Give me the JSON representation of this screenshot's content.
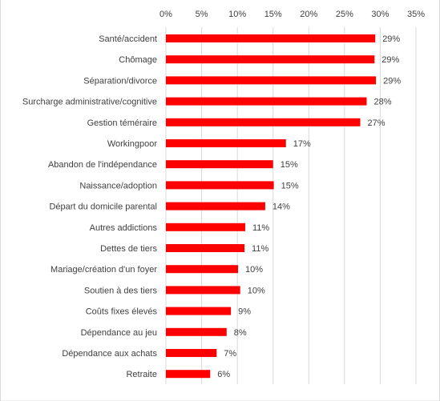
{
  "chart_data": {
    "type": "bar",
    "orientation": "horizontal",
    "categories": [
      "Santé/accident",
      "Chômage",
      "Séparation/divorce",
      "Surcharge administrative/cognitive",
      "Gestion téméraire",
      "Workingpoor",
      "Abandon de l'indépendance",
      "Naissance/adoption",
      "Départ du domicile parental",
      "Autres addictions",
      "Dettes de tiers",
      "Mariage/création d'un foyer",
      "Soutien à des tiers",
      "Coûts fixes élevés",
      "Dépendance au jeu",
      "Dépendance aux achats",
      "Retraite"
    ],
    "values": [
      29.3,
      29.2,
      29.4,
      28.1,
      27.2,
      16.8,
      15.0,
      15.1,
      13.9,
      11.1,
      11.0,
      10.1,
      10.4,
      9.1,
      8.5,
      7.1,
      6.2
    ],
    "data_labels": [
      "29%",
      "29%",
      "29%",
      "28%",
      "27%",
      "17%",
      "15%",
      "15%",
      "14%",
      "11%",
      "11%",
      "10%",
      "10%",
      "9%",
      "8%",
      "7%",
      "6%"
    ],
    "x_ticks": [
      "0%",
      "5%",
      "10%",
      "15%",
      "20%",
      "25%",
      "30%",
      "35%"
    ],
    "xlim": [
      0,
      35
    ],
    "grid": true,
    "legend": "none",
    "bar_color": "#ff0000",
    "grid_color": "#d9d9d9",
    "text_color": "#404040"
  }
}
